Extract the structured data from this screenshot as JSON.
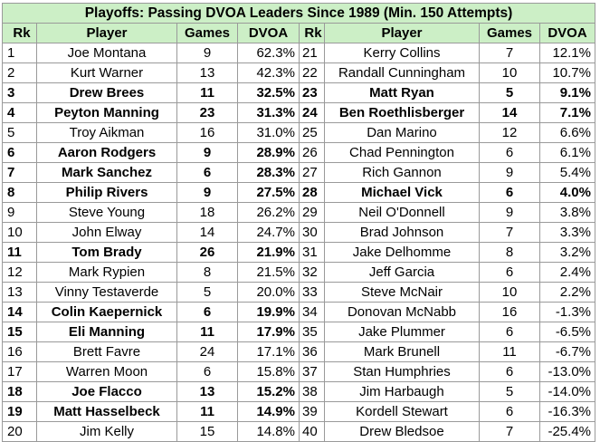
{
  "title": "Playoffs: Passing DVOA Leaders Since 1989 (Min. 150 Attempts)",
  "headers": [
    "Rk",
    "Player",
    "Games",
    "DVOA",
    "Rk",
    "Player",
    "Games",
    "DVOA"
  ],
  "left": [
    {
      "rk": "1",
      "player": "Joe Montana",
      "games": "9",
      "dvoa": "62.3%",
      "bold": false
    },
    {
      "rk": "2",
      "player": "Kurt Warner",
      "games": "13",
      "dvoa": "42.3%",
      "bold": false
    },
    {
      "rk": "3",
      "player": "Drew Brees",
      "games": "11",
      "dvoa": "32.5%",
      "bold": true
    },
    {
      "rk": "4",
      "player": "Peyton Manning",
      "games": "23",
      "dvoa": "31.3%",
      "bold": true
    },
    {
      "rk": "5",
      "player": "Troy Aikman",
      "games": "16",
      "dvoa": "31.0%",
      "bold": false
    },
    {
      "rk": "6",
      "player": "Aaron Rodgers",
      "games": "9",
      "dvoa": "28.9%",
      "bold": true
    },
    {
      "rk": "7",
      "player": "Mark Sanchez",
      "games": "6",
      "dvoa": "28.3%",
      "bold": true
    },
    {
      "rk": "8",
      "player": "Philip Rivers",
      "games": "9",
      "dvoa": "27.5%",
      "bold": true
    },
    {
      "rk": "9",
      "player": "Steve Young",
      "games": "18",
      "dvoa": "26.2%",
      "bold": false
    },
    {
      "rk": "10",
      "player": "John Elway",
      "games": "14",
      "dvoa": "24.7%",
      "bold": false
    },
    {
      "rk": "11",
      "player": "Tom Brady",
      "games": "26",
      "dvoa": "21.9%",
      "bold": true
    },
    {
      "rk": "12",
      "player": "Mark Rypien",
      "games": "8",
      "dvoa": "21.5%",
      "bold": false
    },
    {
      "rk": "13",
      "player": "Vinny Testaverde",
      "games": "5",
      "dvoa": "20.0%",
      "bold": false
    },
    {
      "rk": "14",
      "player": "Colin Kaepernick",
      "games": "6",
      "dvoa": "19.9%",
      "bold": true
    },
    {
      "rk": "15",
      "player": "Eli Manning",
      "games": "11",
      "dvoa": "17.9%",
      "bold": true
    },
    {
      "rk": "16",
      "player": "Brett Favre",
      "games": "24",
      "dvoa": "17.1%",
      "bold": false
    },
    {
      "rk": "17",
      "player": "Warren Moon",
      "games": "6",
      "dvoa": "15.8%",
      "bold": false
    },
    {
      "rk": "18",
      "player": "Joe Flacco",
      "games": "13",
      "dvoa": "15.2%",
      "bold": true
    },
    {
      "rk": "19",
      "player": "Matt Hasselbeck",
      "games": "11",
      "dvoa": "14.9%",
      "bold": true
    },
    {
      "rk": "20",
      "player": "Jim Kelly",
      "games": "15",
      "dvoa": "14.8%",
      "bold": false
    }
  ],
  "right": [
    {
      "rk": "21",
      "player": "Kerry Collins",
      "games": "7",
      "dvoa": "12.1%",
      "bold": false
    },
    {
      "rk": "22",
      "player": "Randall Cunningham",
      "games": "10",
      "dvoa": "10.7%",
      "bold": false
    },
    {
      "rk": "23",
      "player": "Matt Ryan",
      "games": "5",
      "dvoa": "9.1%",
      "bold": true
    },
    {
      "rk": "24",
      "player": "Ben Roethlisberger",
      "games": "14",
      "dvoa": "7.1%",
      "bold": true
    },
    {
      "rk": "25",
      "player": "Dan Marino",
      "games": "12",
      "dvoa": "6.6%",
      "bold": false
    },
    {
      "rk": "26",
      "player": "Chad Pennington",
      "games": "6",
      "dvoa": "6.1%",
      "bold": false
    },
    {
      "rk": "27",
      "player": "Rich Gannon",
      "games": "9",
      "dvoa": "5.4%",
      "bold": false
    },
    {
      "rk": "28",
      "player": "Michael Vick",
      "games": "6",
      "dvoa": "4.0%",
      "bold": true
    },
    {
      "rk": "29",
      "player": "Neil O'Donnell",
      "games": "9",
      "dvoa": "3.8%",
      "bold": false
    },
    {
      "rk": "30",
      "player": "Brad Johnson",
      "games": "7",
      "dvoa": "3.3%",
      "bold": false
    },
    {
      "rk": "31",
      "player": "Jake Delhomme",
      "games": "8",
      "dvoa": "3.2%",
      "bold": false
    },
    {
      "rk": "32",
      "player": "Jeff Garcia",
      "games": "6",
      "dvoa": "2.4%",
      "bold": false
    },
    {
      "rk": "33",
      "player": "Steve McNair",
      "games": "10",
      "dvoa": "2.2%",
      "bold": false
    },
    {
      "rk": "34",
      "player": "Donovan McNabb",
      "games": "16",
      "dvoa": "-1.3%",
      "bold": false
    },
    {
      "rk": "35",
      "player": "Jake Plummer",
      "games": "6",
      "dvoa": "-6.5%",
      "bold": false
    },
    {
      "rk": "36",
      "player": "Mark Brunell",
      "games": "11",
      "dvoa": "-6.7%",
      "bold": false
    },
    {
      "rk": "37",
      "player": "Stan Humphries",
      "games": "6",
      "dvoa": "-13.0%",
      "bold": false
    },
    {
      "rk": "38",
      "player": "Jim Harbaugh",
      "games": "5",
      "dvoa": "-14.0%",
      "bold": false
    },
    {
      "rk": "39",
      "player": "Kordell Stewart",
      "games": "6",
      "dvoa": "-16.3%",
      "bold": false
    },
    {
      "rk": "40",
      "player": "Drew Bledsoe",
      "games": "7",
      "dvoa": "-25.4%",
      "bold": false
    }
  ]
}
